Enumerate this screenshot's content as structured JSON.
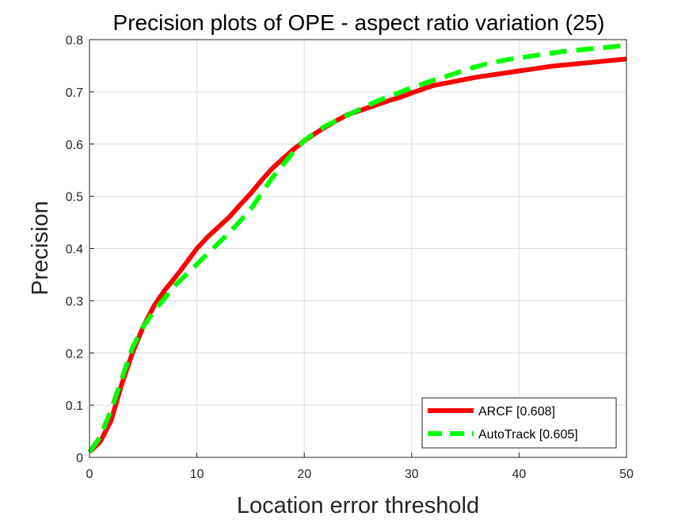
{
  "chart_data": {
    "type": "line",
    "title": "Precision plots of OPE - aspect ratio variation (25)",
    "xlabel": "Location error threshold",
    "ylabel": "Precision",
    "xlim": [
      0,
      50
    ],
    "ylim": [
      0,
      0.8
    ],
    "xticks": [
      0,
      10,
      20,
      30,
      40,
      50
    ],
    "yticks": [
      0,
      0.1,
      0.2,
      0.3,
      0.4,
      0.5,
      0.6,
      0.7,
      0.8
    ],
    "xtick_labels": [
      "0",
      "10",
      "20",
      "30",
      "40",
      "50"
    ],
    "ytick_labels": [
      "0",
      "0.1",
      "0.2",
      "0.3",
      "0.4",
      "0.5",
      "0.6",
      "0.7",
      "0.8"
    ],
    "grid": true,
    "legend_position": "bottom-right",
    "series": [
      {
        "name": "ARCF [0.608]",
        "color": "#ff0000",
        "style": "solid",
        "x": [
          0,
          1,
          2,
          3,
          4,
          5,
          6,
          7,
          8,
          9,
          10,
          11,
          12,
          13,
          14,
          15,
          16,
          17,
          18,
          19,
          20,
          21,
          22,
          23,
          24,
          25,
          26,
          27,
          28,
          29,
          30,
          31,
          32,
          33,
          34,
          35,
          36,
          37,
          38,
          39,
          40,
          41,
          42,
          43,
          44,
          45,
          46,
          47,
          48,
          49,
          50
        ],
        "y": [
          0.01,
          0.03,
          0.07,
          0.14,
          0.2,
          0.25,
          0.29,
          0.32,
          0.345,
          0.372,
          0.4,
          0.422,
          0.441,
          0.46,
          0.483,
          0.505,
          0.53,
          0.553,
          0.572,
          0.59,
          0.606,
          0.62,
          0.633,
          0.645,
          0.656,
          0.663,
          0.67,
          0.677,
          0.684,
          0.69,
          0.698,
          0.705,
          0.712,
          0.716,
          0.72,
          0.724,
          0.728,
          0.731,
          0.734,
          0.737,
          0.74,
          0.743,
          0.746,
          0.749,
          0.751,
          0.753,
          0.755,
          0.757,
          0.759,
          0.761,
          0.763
        ]
      },
      {
        "name": "AutoTrack [0.605]",
        "color": "#00ff00",
        "style": "dashed",
        "x": [
          0,
          1,
          2,
          3,
          4,
          5,
          6,
          7,
          8,
          9,
          10,
          11,
          12,
          13,
          14,
          15,
          16,
          17,
          18,
          19,
          20,
          21,
          22,
          23,
          24,
          25,
          26,
          27,
          28,
          29,
          30,
          31,
          32,
          33,
          34,
          35,
          36,
          37,
          38,
          39,
          40,
          41,
          42,
          43,
          44,
          45,
          46,
          47,
          48,
          49,
          50
        ],
        "y": [
          0.01,
          0.04,
          0.09,
          0.15,
          0.21,
          0.25,
          0.28,
          0.305,
          0.33,
          0.35,
          0.37,
          0.39,
          0.41,
          0.43,
          0.452,
          0.475,
          0.505,
          0.535,
          0.56,
          0.585,
          0.607,
          0.622,
          0.635,
          0.645,
          0.655,
          0.665,
          0.675,
          0.684,
          0.692,
          0.7,
          0.708,
          0.715,
          0.722,
          0.728,
          0.735,
          0.742,
          0.748,
          0.754,
          0.758,
          0.762,
          0.765,
          0.768,
          0.771,
          0.774,
          0.777,
          0.779,
          0.781,
          0.783,
          0.785,
          0.787,
          0.789
        ]
      }
    ]
  }
}
